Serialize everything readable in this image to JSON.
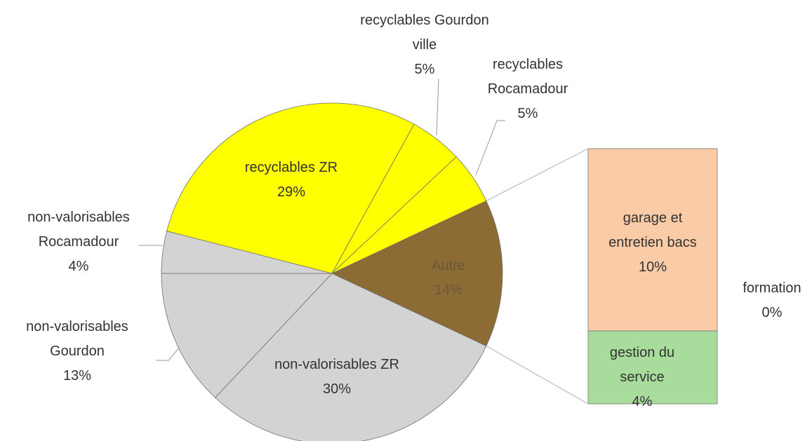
{
  "chart_data": {
    "type": "pie",
    "categories": [
      "Autre",
      "non-valorisables ZR",
      "non-valorisables Gourdon",
      "non-valorisables Rocamadour",
      "recyclables ZR",
      "recyclables Gourdon ville",
      "recyclables Rocamadour"
    ],
    "values": [
      14,
      30,
      13,
      4,
      29,
      5,
      5
    ],
    "value_labels": [
      "14%",
      "30%",
      "13%",
      "4%",
      "29%",
      "5%",
      "5%"
    ],
    "colors": [
      "#8c6b34",
      "#d3d3d3",
      "#d3d3d3",
      "#d3d3d3",
      "#ffff00",
      "#ffff00",
      "#ffff00"
    ],
    "secondary": {
      "type": "bar",
      "categories": [
        "garage et entretien bacs",
        "formation",
        "gestion du service"
      ],
      "values": [
        10,
        0,
        4
      ],
      "value_labels": [
        "10%",
        "0%",
        "4%"
      ],
      "colors": [
        "#f9cba6",
        "#f9cba6",
        "#a8dc9c"
      ]
    }
  }
}
